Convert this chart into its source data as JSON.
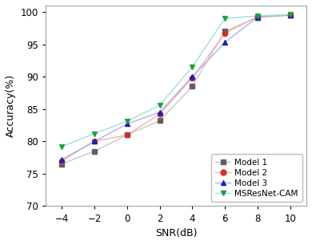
{
  "snr": [
    -4,
    -2,
    0,
    2,
    4,
    6,
    8,
    10
  ],
  "model1": [
    76.5,
    78.5,
    81.0,
    83.2,
    88.5,
    97.0,
    99.2,
    99.5
  ],
  "model2": [
    77.0,
    80.0,
    81.0,
    84.2,
    89.8,
    96.7,
    99.3,
    99.5
  ],
  "model3": [
    77.2,
    80.0,
    82.7,
    84.5,
    90.0,
    95.3,
    99.2,
    99.5
  ],
  "msresnet": [
    79.2,
    81.2,
    83.1,
    85.6,
    91.5,
    99.0,
    99.4,
    99.6
  ],
  "model1_line_color": "#c8c8c8",
  "model2_line_color": "#f0b0b0",
  "model3_line_color": "#b0b0e8",
  "msresnet_line_color": "#a0e0d0",
  "model1_marker_color": "#606060",
  "model2_marker_color": "#d03030",
  "model3_marker_color": "#2020b0",
  "msresnet_marker_color": "#20a040",
  "model1_label": "Model 1",
  "model2_label": "Model 2",
  "model3_label": "Model 3",
  "msresnet_label": "MSResNet-CAM",
  "xlabel": "SNR(dB)",
  "ylabel": "Accuracy(%)",
  "ylim": [
    70,
    101
  ],
  "yticks": [
    70,
    75,
    80,
    85,
    90,
    95,
    100
  ],
  "xlim": [
    -5,
    11
  ],
  "xticks": [
    -4,
    -2,
    0,
    2,
    4,
    6,
    8,
    10
  ]
}
